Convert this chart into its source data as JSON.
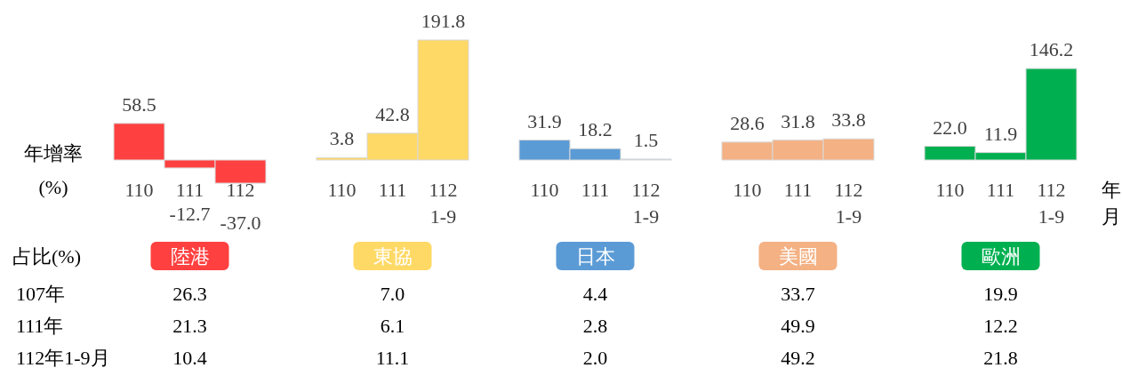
{
  "chart_data": [
    {
      "type": "bar",
      "ylabel": "年增率\n(%)",
      "xlabel": "年月",
      "categories": [
        "110",
        "111",
        "112",
        null,
        "110",
        "111",
        "112\n1-9",
        null,
        "110",
        "111",
        "112\n1-9",
        null,
        "110",
        "111",
        "112\n1-9",
        null,
        "110",
        "111",
        "112\n1-9"
      ],
      "values": [
        58.5,
        -12.7,
        -37.0,
        null,
        3.8,
        42.8,
        191.8,
        null,
        31.9,
        18.2,
        1.5,
        null,
        28.6,
        31.8,
        33.8,
        null,
        22.0,
        11.9,
        146.2
      ],
      "colors": [
        "#ff4040",
        "#ff4040",
        "#ff4040",
        null,
        "#ffd966",
        "#ffd966",
        "#ffd966",
        null,
        "#5b9bd5",
        "#5b9bd5",
        "#5b9bd5",
        null,
        "#f4b183",
        "#f4b183",
        "#f4b183",
        null,
        "#00b050",
        "#00b050",
        "#00b050"
      ],
      "value_labels": [
        "58.5",
        "-12.7",
        "-37.0",
        null,
        "3.8",
        "42.8",
        "191.8",
        null,
        "31.9",
        "18.2",
        "1.5",
        null,
        "28.6",
        "31.8",
        "33.8",
        null,
        "22.0",
        "11.9",
        "146.2"
      ]
    },
    {
      "type": "other",
      "ylabel": "占比(%)",
      "categories": [
        "陸港",
        "東協",
        "日本",
        "美國",
        "歐洲"
      ],
      "colors": [
        "#ff4040",
        "#ffd966",
        "#5b9bd5",
        "#f4b183",
        "#00b050"
      ],
      "series": [
        {
          "name": "107年",
          "values": [
            26.3,
            7.0,
            4.4,
            33.7,
            19.9
          ],
          "value_labels": [
            "26.3",
            "7.0",
            "4.4",
            "33.7",
            "19.9"
          ]
        },
        {
          "name": "111年",
          "values": [
            21.3,
            6.1,
            2.8,
            49.9,
            12.2
          ],
          "value_labels": [
            "21.3",
            "6.1",
            "2.8",
            "49.9",
            "12.2"
          ]
        },
        {
          "name": "112年1-9月",
          "values": [
            10.4,
            11.1,
            2.0,
            49.2,
            21.8
          ],
          "value_labels": [
            "10.4",
            "11.1",
            "2.0",
            "49.2",
            "21.8"
          ]
        }
      ]
    }
  ]
}
